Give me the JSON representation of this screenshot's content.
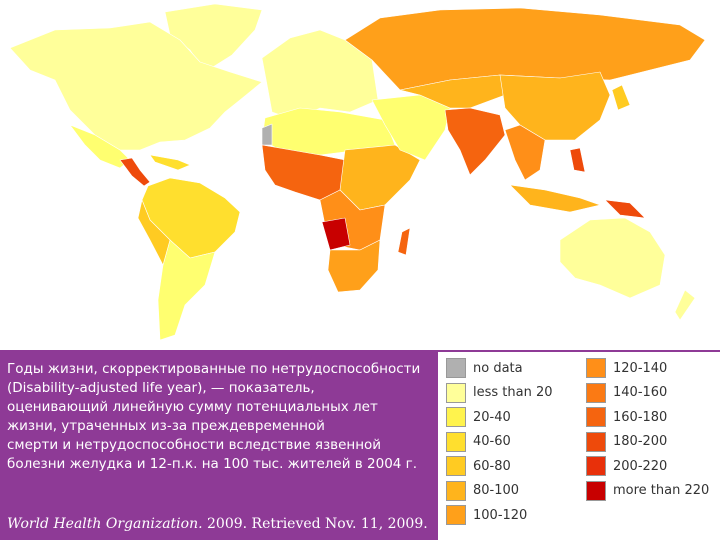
{
  "description": {
    "lines": [
      "Годы жизни, скорректированные по нетрудоспособности",
      "(Disability-adjusted life year), — показатель,",
      "оценивающий линейную сумму потенциальных лет",
      "жизни, утраченных из-за преждевременной",
      "смерти и нетрудоспособности вследствие язвенной",
      "болезни желудка и 12-п.к. на 100 тыс. жителей в 2004 г."
    ]
  },
  "citation": {
    "organization": "World Health Organization.",
    "rest": "2009. Retrieved Nov. 11, 2009."
  },
  "legend": {
    "items": [
      {
        "label": "no data",
        "color": "#b0b0b0"
      },
      {
        "label": "less than 20",
        "color": "#ffff9a"
      },
      {
        "label": "20-40",
        "color": "#fff34d"
      },
      {
        "label": "40-60",
        "color": "#ffdf2e"
      },
      {
        "label": "60-80",
        "color": "#ffcb22"
      },
      {
        "label": "80-100",
        "color": "#ffb41c"
      },
      {
        "label": "100-120",
        "color": "#ffa01a"
      },
      {
        "label": "120-140",
        "color": "#ff8f18"
      },
      {
        "label": "140-160",
        "color": "#fb7a14"
      },
      {
        "label": "160-180",
        "color": "#f5640f"
      },
      {
        "label": "180-200",
        "color": "#ee4a0b"
      },
      {
        "label": "200-220",
        "color": "#e8300a"
      },
      {
        "label": "more than 220",
        "color": "#c80000"
      }
    ]
  }
}
